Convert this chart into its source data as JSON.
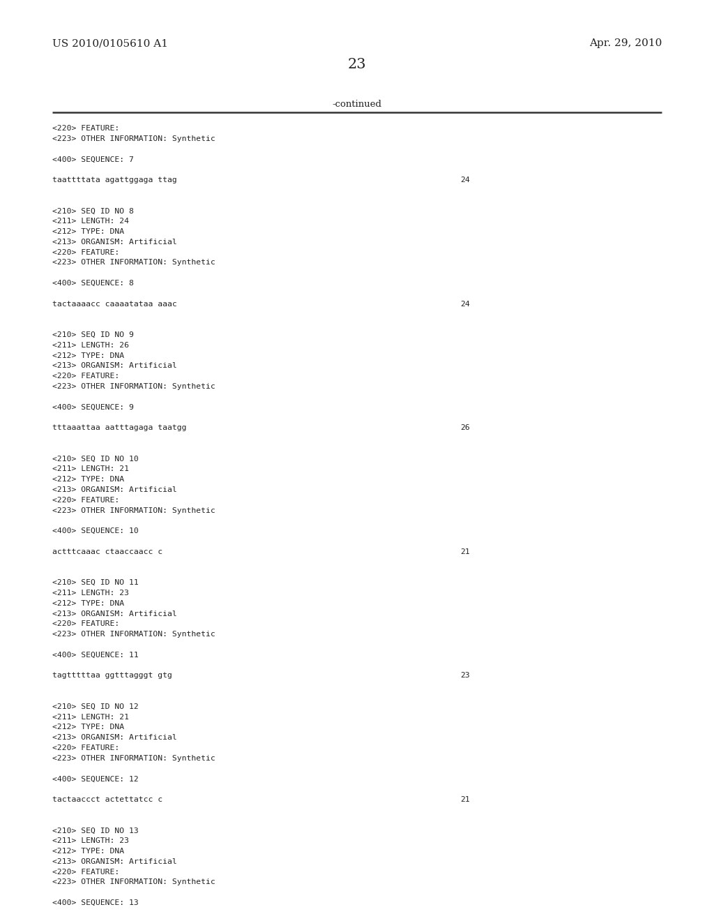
{
  "background_color": "#ffffff",
  "header_left": "US 2010/0105610 A1",
  "header_right": "Apr. 29, 2010",
  "page_number": "23",
  "continued_label": "-continued",
  "figsize": [
    10.24,
    13.2
  ],
  "dpi": 100,
  "header_font_size": 11,
  "page_num_font_size": 15,
  "continued_font_size": 9.5,
  "mono_font_size": 8.2,
  "text_color": "#222222",
  "line_color": "#333333",
  "content": [
    {
      "text": "<220> FEATURE:",
      "col": "left"
    },
    {
      "text": "<223> OTHER INFORMATION: Synthetic",
      "col": "left"
    },
    {
      "text": "",
      "col": "left"
    },
    {
      "text": "<400> SEQUENCE: 7",
      "col": "left"
    },
    {
      "text": "",
      "col": "left"
    },
    {
      "text": "taattttata agattggaga ttag",
      "col": "left",
      "num": "24"
    },
    {
      "text": "",
      "col": "left"
    },
    {
      "text": "",
      "col": "left"
    },
    {
      "text": "<210> SEQ ID NO 8",
      "col": "left"
    },
    {
      "text": "<211> LENGTH: 24",
      "col": "left"
    },
    {
      "text": "<212> TYPE: DNA",
      "col": "left"
    },
    {
      "text": "<213> ORGANISM: Artificial",
      "col": "left"
    },
    {
      "text": "<220> FEATURE:",
      "col": "left"
    },
    {
      "text": "<223> OTHER INFORMATION: Synthetic",
      "col": "left"
    },
    {
      "text": "",
      "col": "left"
    },
    {
      "text": "<400> SEQUENCE: 8",
      "col": "left"
    },
    {
      "text": "",
      "col": "left"
    },
    {
      "text": "tactaaaacc caaaatataa aaac",
      "col": "left",
      "num": "24"
    },
    {
      "text": "",
      "col": "left"
    },
    {
      "text": "",
      "col": "left"
    },
    {
      "text": "<210> SEQ ID NO 9",
      "col": "left"
    },
    {
      "text": "<211> LENGTH: 26",
      "col": "left"
    },
    {
      "text": "<212> TYPE: DNA",
      "col": "left"
    },
    {
      "text": "<213> ORGANISM: Artificial",
      "col": "left"
    },
    {
      "text": "<220> FEATURE:",
      "col": "left"
    },
    {
      "text": "<223> OTHER INFORMATION: Synthetic",
      "col": "left"
    },
    {
      "text": "",
      "col": "left"
    },
    {
      "text": "<400> SEQUENCE: 9",
      "col": "left"
    },
    {
      "text": "",
      "col": "left"
    },
    {
      "text": "tttaaattaa aatttagaga taatgg",
      "col": "left",
      "num": "26"
    },
    {
      "text": "",
      "col": "left"
    },
    {
      "text": "",
      "col": "left"
    },
    {
      "text": "<210> SEQ ID NO 10",
      "col": "left"
    },
    {
      "text": "<211> LENGTH: 21",
      "col": "left"
    },
    {
      "text": "<212> TYPE: DNA",
      "col": "left"
    },
    {
      "text": "<213> ORGANISM: Artificial",
      "col": "left"
    },
    {
      "text": "<220> FEATURE:",
      "col": "left"
    },
    {
      "text": "<223> OTHER INFORMATION: Synthetic",
      "col": "left"
    },
    {
      "text": "",
      "col": "left"
    },
    {
      "text": "<400> SEQUENCE: 10",
      "col": "left"
    },
    {
      "text": "",
      "col": "left"
    },
    {
      "text": "actttcaaac ctaaccaacc c",
      "col": "left",
      "num": "21"
    },
    {
      "text": "",
      "col": "left"
    },
    {
      "text": "",
      "col": "left"
    },
    {
      "text": "<210> SEQ ID NO 11",
      "col": "left"
    },
    {
      "text": "<211> LENGTH: 23",
      "col": "left"
    },
    {
      "text": "<212> TYPE: DNA",
      "col": "left"
    },
    {
      "text": "<213> ORGANISM: Artificial",
      "col": "left"
    },
    {
      "text": "<220> FEATURE:",
      "col": "left"
    },
    {
      "text": "<223> OTHER INFORMATION: Synthetic",
      "col": "left"
    },
    {
      "text": "",
      "col": "left"
    },
    {
      "text": "<400> SEQUENCE: 11",
      "col": "left"
    },
    {
      "text": "",
      "col": "left"
    },
    {
      "text": "tagtttttaa ggtttagggt gtg",
      "col": "left",
      "num": "23"
    },
    {
      "text": "",
      "col": "left"
    },
    {
      "text": "",
      "col": "left"
    },
    {
      "text": "<210> SEQ ID NO 12",
      "col": "left"
    },
    {
      "text": "<211> LENGTH: 21",
      "col": "left"
    },
    {
      "text": "<212> TYPE: DNA",
      "col": "left"
    },
    {
      "text": "<213> ORGANISM: Artificial",
      "col": "left"
    },
    {
      "text": "<220> FEATURE:",
      "col": "left"
    },
    {
      "text": "<223> OTHER INFORMATION: Synthetic",
      "col": "left"
    },
    {
      "text": "",
      "col": "left"
    },
    {
      "text": "<400> SEQUENCE: 12",
      "col": "left"
    },
    {
      "text": "",
      "col": "left"
    },
    {
      "text": "tactaaccct actettatcc c",
      "col": "left",
      "num": "21"
    },
    {
      "text": "",
      "col": "left"
    },
    {
      "text": "",
      "col": "left"
    },
    {
      "text": "<210> SEQ ID NO 13",
      "col": "left"
    },
    {
      "text": "<211> LENGTH: 23",
      "col": "left"
    },
    {
      "text": "<212> TYPE: DNA",
      "col": "left"
    },
    {
      "text": "<213> ORGANISM: Artificial",
      "col": "left"
    },
    {
      "text": "<220> FEATURE:",
      "col": "left"
    },
    {
      "text": "<223> OTHER INFORMATION: Synthetic",
      "col": "left"
    },
    {
      "text": "",
      "col": "left"
    },
    {
      "text": "<400> SEQUENCE: 13",
      "col": "left"
    }
  ]
}
